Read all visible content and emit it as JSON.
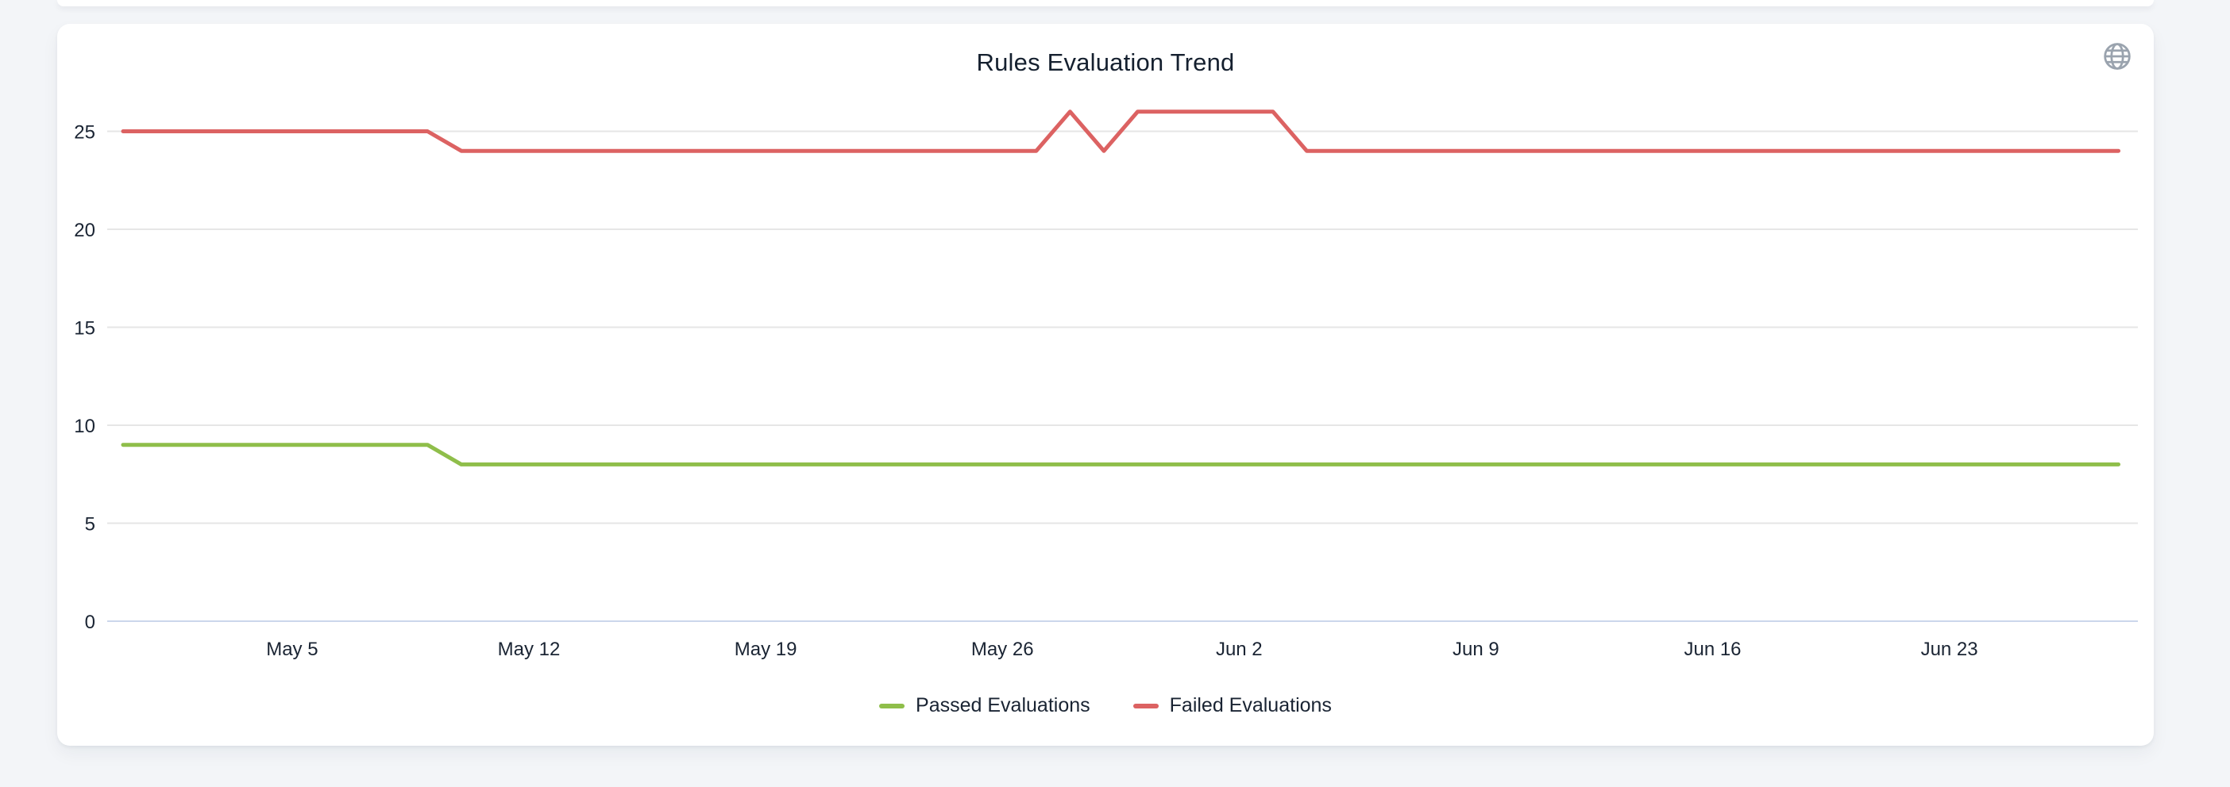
{
  "page": {
    "background_color": "#f3f5f8"
  },
  "card": {
    "title": "Rules Evaluation Trend"
  },
  "toolbar": {
    "globe_button_icon": "globe-icon",
    "icon_color": "#9aa3ae"
  },
  "legend": {
    "items": [
      {
        "label": "Passed Evaluations",
        "color": "#8fbe4a"
      },
      {
        "label": "Failed Evaluations",
        "color": "#dc6262"
      }
    ]
  },
  "chart_data": {
    "type": "line",
    "title": "Rules Evaluation Trend",
    "xlabel": "",
    "ylabel": "",
    "grid": true,
    "legend_position": "bottom",
    "grid_color": "#e6e6e6",
    "axis_line_color": "#ccd6eb",
    "yticks": [
      0,
      5,
      10,
      15,
      20,
      25
    ],
    "ylim": [
      0,
      27
    ],
    "xticks": {
      "labels": [
        "May 5",
        "May 12",
        "May 19",
        "May 26",
        "Jun 2",
        "Jun 9",
        "Jun 16",
        "Jun 23"
      ],
      "indices": [
        5,
        12,
        19,
        26,
        33,
        40,
        47,
        54
      ]
    },
    "x": [
      "Apr 30",
      "May 1",
      "May 2",
      "May 3",
      "May 4",
      "May 5",
      "May 6",
      "May 7",
      "May 8",
      "May 9",
      "May 10",
      "May 11",
      "May 12",
      "May 13",
      "May 14",
      "May 15",
      "May 16",
      "May 17",
      "May 18",
      "May 19",
      "May 20",
      "May 21",
      "May 22",
      "May 23",
      "May 24",
      "May 25",
      "May 26",
      "May 27",
      "May 28",
      "May 29",
      "May 30",
      "May 31",
      "Jun 1",
      "Jun 2",
      "Jun 3",
      "Jun 4",
      "Jun 5",
      "Jun 6",
      "Jun 7",
      "Jun 8",
      "Jun 9",
      "Jun 10",
      "Jun 11",
      "Jun 12",
      "Jun 13",
      "Jun 14",
      "Jun 15",
      "Jun 16",
      "Jun 17",
      "Jun 18",
      "Jun 19",
      "Jun 20",
      "Jun 21",
      "Jun 22",
      "Jun 23",
      "Jun 24",
      "Jun 25",
      "Jun 26",
      "Jun 27",
      "Jun 28"
    ],
    "series": [
      {
        "name": "Passed Evaluations",
        "color": "#8fbe4a",
        "values": [
          9,
          9,
          9,
          9,
          9,
          9,
          9,
          9,
          9,
          9,
          8,
          8,
          8,
          8,
          8,
          8,
          8,
          8,
          8,
          8,
          8,
          8,
          8,
          8,
          8,
          8,
          8,
          8,
          8,
          8,
          8,
          8,
          8,
          8,
          8,
          8,
          8,
          8,
          8,
          8,
          8,
          8,
          8,
          8,
          8,
          8,
          8,
          8,
          8,
          8,
          8,
          8,
          8,
          8,
          8,
          8,
          8,
          8,
          8,
          8
        ]
      },
      {
        "name": "Failed Evaluations",
        "color": "#dc6262",
        "values": [
          25,
          25,
          25,
          25,
          25,
          25,
          25,
          25,
          25,
          25,
          24,
          24,
          24,
          24,
          24,
          24,
          24,
          24,
          24,
          24,
          24,
          24,
          24,
          24,
          24,
          24,
          24,
          24,
          26,
          24,
          26,
          26,
          26,
          26,
          26,
          24,
          24,
          24,
          24,
          24,
          24,
          24,
          24,
          24,
          24,
          24,
          24,
          24,
          24,
          24,
          24,
          24,
          24,
          24,
          24,
          24,
          24,
          24,
          24,
          24
        ]
      }
    ]
  }
}
